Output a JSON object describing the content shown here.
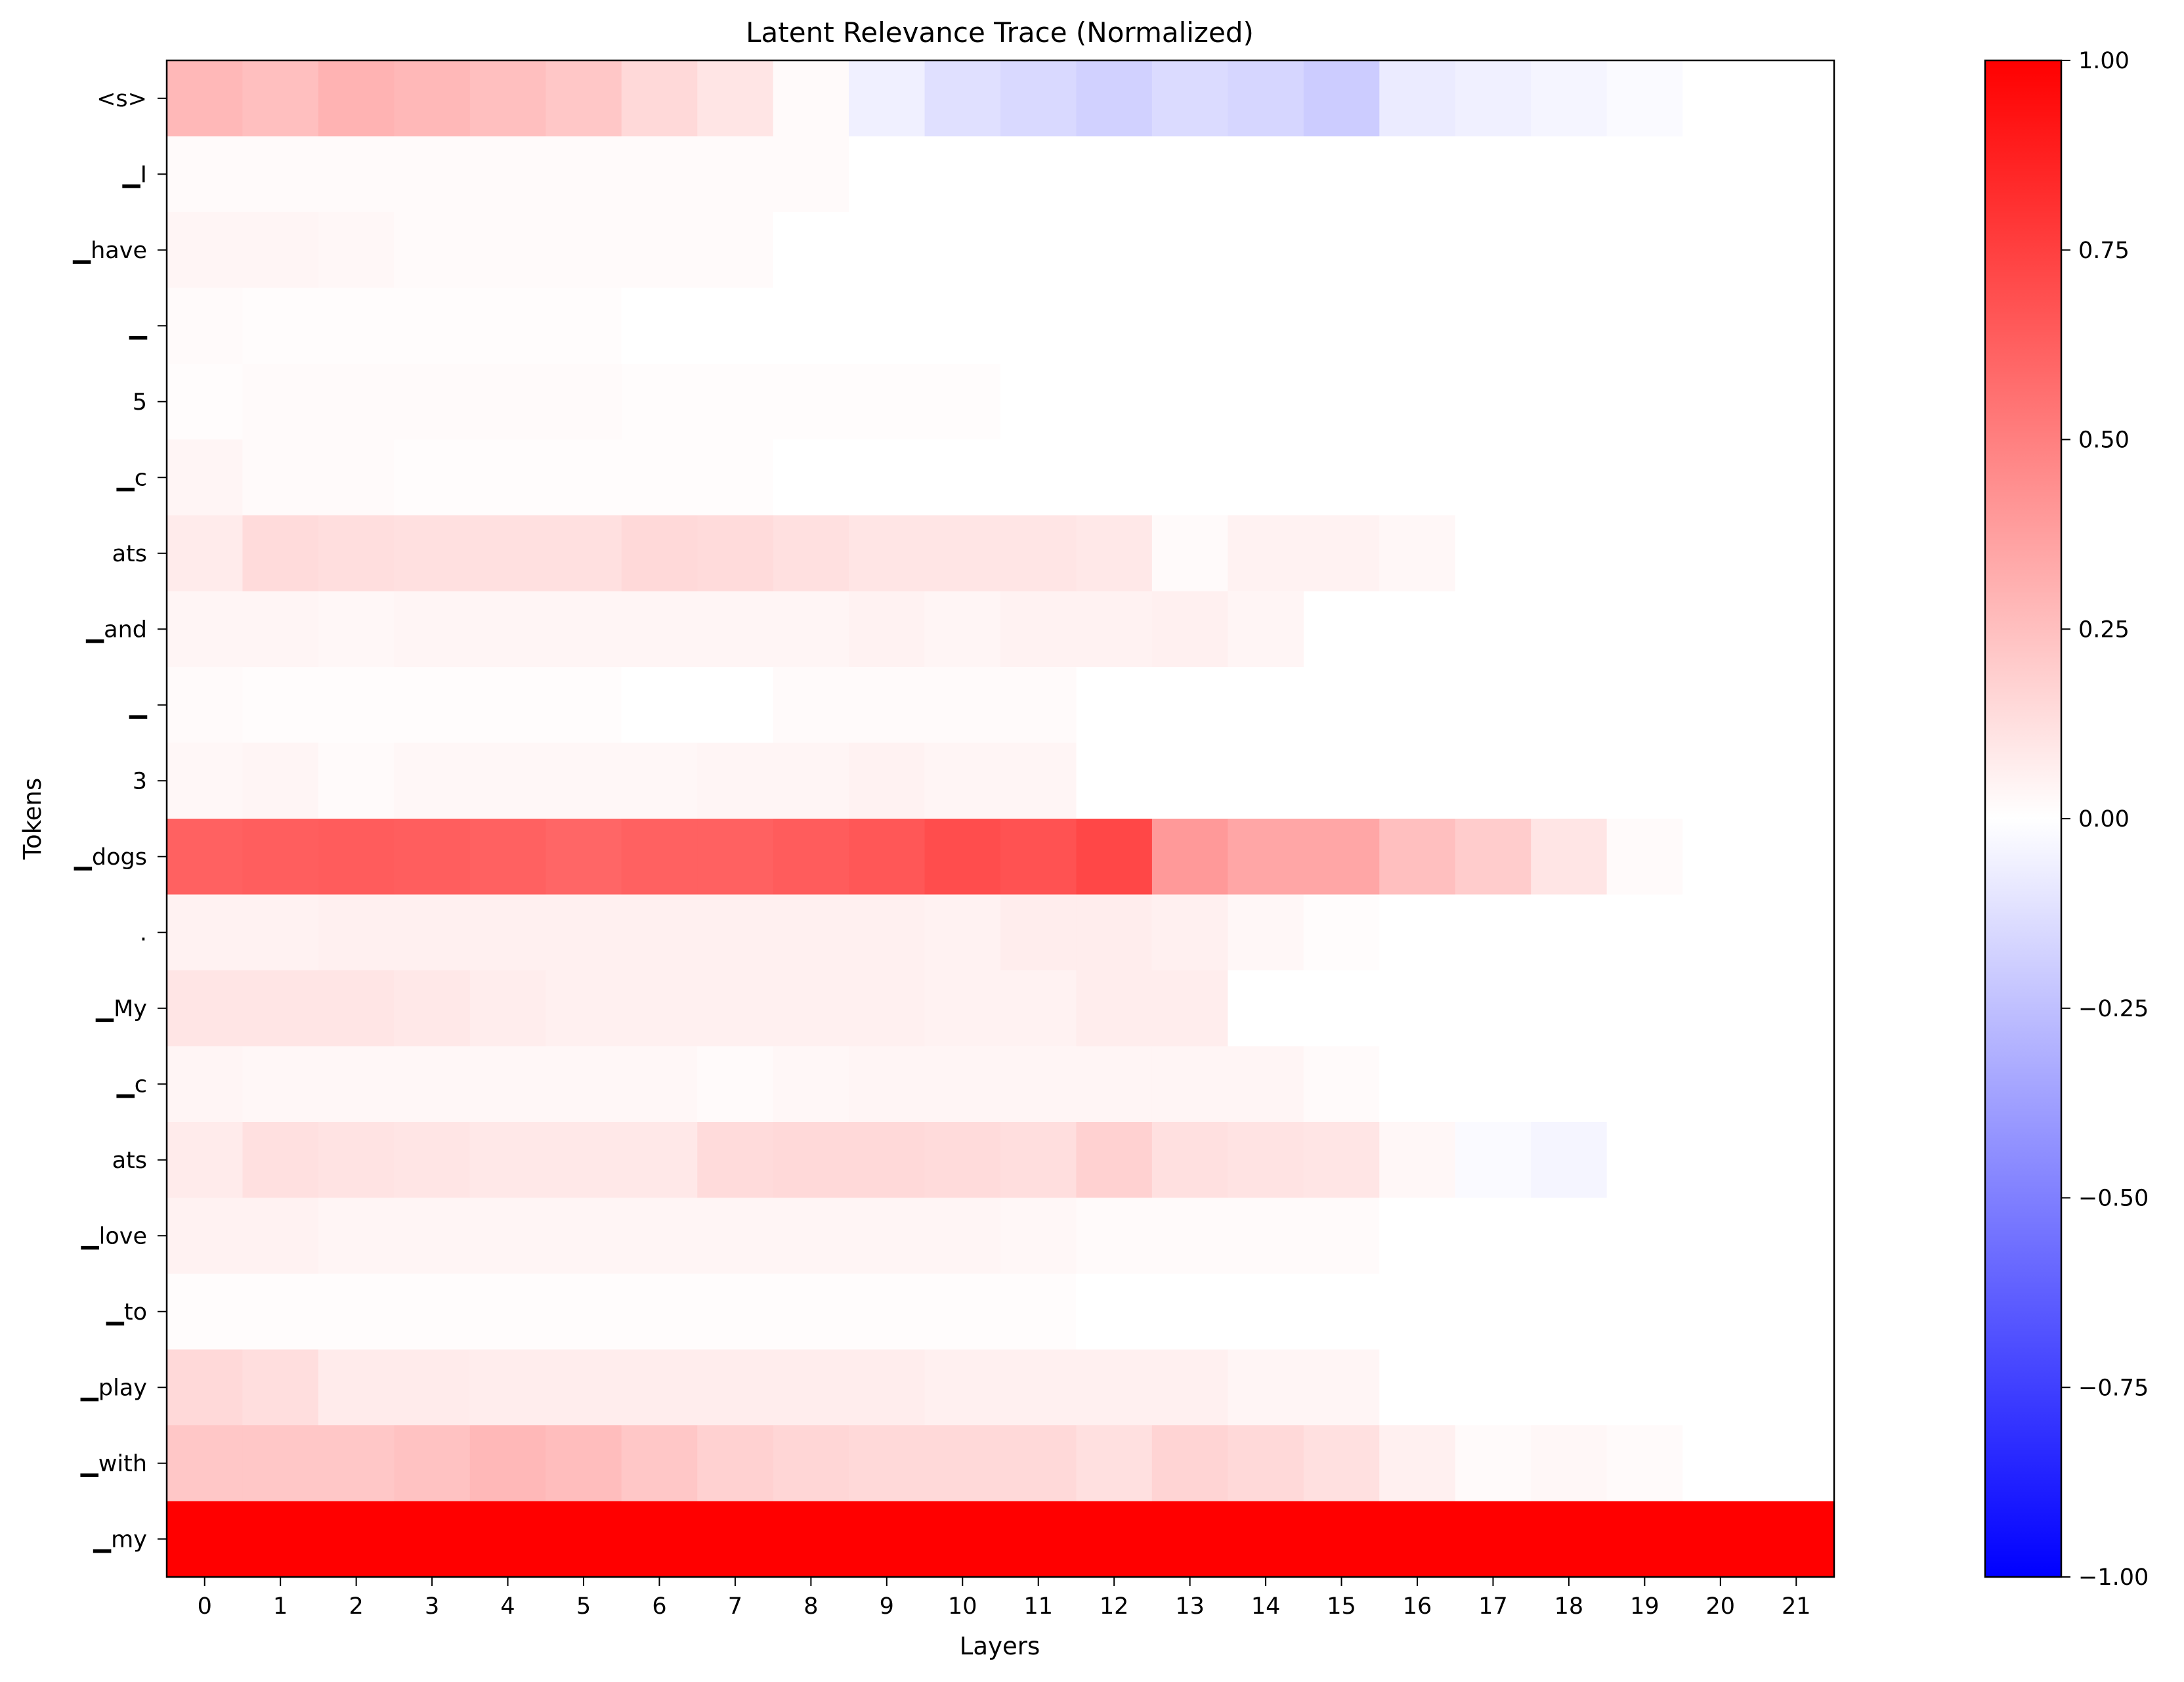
{
  "chart_data": {
    "type": "heatmap",
    "title": "Latent Relevance Trace (Normalized)",
    "xlabel": "Layers",
    "ylabel": "Tokens",
    "x": [
      0,
      1,
      2,
      3,
      4,
      5,
      6,
      7,
      8,
      9,
      10,
      11,
      12,
      13,
      14,
      15,
      16,
      17,
      18,
      19,
      20,
      21
    ],
    "y": [
      "<s>",
      "▁I",
      "▁have",
      "▁",
      "5",
      "▁c",
      "ats",
      "▁and",
      "▁",
      "3",
      "▁dogs",
      ".",
      "▁My",
      "▁c",
      "ats",
      "▁love",
      "▁to",
      "▁play",
      "▁with",
      "▁my"
    ],
    "values": [
      [
        0.28,
        0.25,
        0.3,
        0.28,
        0.25,
        0.22,
        0.15,
        0.1,
        0.02,
        -0.06,
        -0.12,
        -0.15,
        -0.18,
        -0.14,
        -0.16,
        -0.2,
        -0.08,
        -0.06,
        -0.04,
        -0.02,
        0.0,
        0.0
      ],
      [
        0.02,
        0.02,
        0.02,
        0.02,
        0.02,
        0.02,
        0.02,
        0.02,
        0.02,
        0.0,
        0.0,
        0.0,
        0.0,
        0.0,
        0.0,
        0.0,
        0.0,
        0.0,
        0.0,
        0.0,
        0.0,
        0.0
      ],
      [
        0.04,
        0.04,
        0.03,
        0.02,
        0.02,
        0.02,
        0.02,
        0.02,
        0.0,
        0.0,
        0.0,
        0.0,
        0.0,
        0.0,
        0.0,
        0.0,
        0.0,
        0.0,
        0.0,
        0.0,
        0.0,
        0.0
      ],
      [
        0.02,
        0.01,
        0.01,
        0.01,
        0.01,
        0.01,
        0.0,
        0.0,
        0.0,
        0.0,
        0.0,
        0.0,
        0.0,
        0.0,
        0.0,
        0.0,
        0.0,
        0.0,
        0.0,
        0.0,
        0.0,
        0.0
      ],
      [
        0.01,
        0.02,
        0.02,
        0.02,
        0.02,
        0.02,
        0.01,
        0.01,
        0.01,
        0.01,
        0.01,
        0.0,
        0.0,
        0.0,
        0.0,
        0.0,
        0.0,
        0.0,
        0.0,
        0.0,
        0.0,
        0.0
      ],
      [
        0.04,
        0.02,
        0.02,
        0.01,
        0.01,
        0.01,
        0.01,
        0.01,
        0.0,
        0.0,
        0.0,
        0.0,
        0.0,
        0.0,
        0.0,
        0.0,
        0.0,
        0.0,
        0.0,
        0.0,
        0.0,
        0.0
      ],
      [
        0.08,
        0.14,
        0.13,
        0.12,
        0.12,
        0.12,
        0.15,
        0.14,
        0.12,
        0.1,
        0.1,
        0.1,
        0.09,
        0.02,
        0.05,
        0.05,
        0.03,
        0.0,
        0.0,
        0.0,
        0.0,
        0.0
      ],
      [
        0.04,
        0.04,
        0.03,
        0.04,
        0.04,
        0.04,
        0.04,
        0.04,
        0.04,
        0.05,
        0.04,
        0.05,
        0.05,
        0.06,
        0.04,
        0.0,
        0.0,
        0.0,
        0.0,
        0.0,
        0.0,
        0.0
      ],
      [
        0.02,
        0.01,
        0.01,
        0.01,
        0.01,
        0.01,
        0.0,
        0.0,
        0.02,
        0.02,
        0.02,
        0.02,
        0.0,
        0.0,
        0.0,
        0.0,
        0.0,
        0.0,
        0.0,
        0.0,
        0.0,
        0.0
      ],
      [
        0.03,
        0.04,
        0.02,
        0.03,
        0.03,
        0.03,
        0.03,
        0.04,
        0.04,
        0.05,
        0.04,
        0.04,
        0.0,
        0.0,
        0.0,
        0.0,
        0.0,
        0.0,
        0.0,
        0.0,
        0.0,
        0.0
      ],
      [
        0.62,
        0.63,
        0.64,
        0.63,
        0.62,
        0.6,
        0.62,
        0.62,
        0.64,
        0.66,
        0.7,
        0.68,
        0.72,
        0.4,
        0.35,
        0.35,
        0.25,
        0.2,
        0.1,
        0.02,
        0.0,
        0.0
      ],
      [
        0.05,
        0.05,
        0.06,
        0.06,
        0.06,
        0.06,
        0.06,
        0.06,
        0.06,
        0.06,
        0.05,
        0.07,
        0.07,
        0.06,
        0.03,
        0.01,
        0.0,
        0.0,
        0.0,
        0.0,
        0.0,
        0.0
      ],
      [
        0.1,
        0.1,
        0.1,
        0.09,
        0.07,
        0.06,
        0.06,
        0.06,
        0.06,
        0.06,
        0.05,
        0.05,
        0.07,
        0.07,
        0.0,
        0.0,
        0.0,
        0.0,
        0.0,
        0.0,
        0.0,
        0.0
      ],
      [
        0.04,
        0.03,
        0.03,
        0.03,
        0.03,
        0.03,
        0.03,
        0.02,
        0.03,
        0.04,
        0.04,
        0.04,
        0.04,
        0.04,
        0.04,
        0.02,
        0.0,
        0.0,
        0.0,
        0.0,
        0.0,
        0.0
      ],
      [
        0.08,
        0.12,
        0.11,
        0.1,
        0.09,
        0.09,
        0.09,
        0.14,
        0.15,
        0.15,
        0.14,
        0.13,
        0.18,
        0.12,
        0.11,
        0.1,
        0.03,
        -0.02,
        -0.04,
        0.0,
        0.0,
        0.0
      ],
      [
        0.05,
        0.05,
        0.04,
        0.04,
        0.04,
        0.04,
        0.04,
        0.04,
        0.04,
        0.04,
        0.04,
        0.03,
        0.02,
        0.02,
        0.02,
        0.02,
        0.0,
        0.0,
        0.0,
        0.0,
        0.0,
        0.0
      ],
      [
        0.01,
        0.01,
        0.01,
        0.01,
        0.01,
        0.01,
        0.01,
        0.01,
        0.01,
        0.01,
        0.01,
        0.01,
        0.0,
        0.0,
        0.0,
        0.0,
        0.0,
        0.0,
        0.0,
        0.0,
        0.0,
        0.0
      ],
      [
        0.15,
        0.13,
        0.08,
        0.08,
        0.07,
        0.07,
        0.07,
        0.07,
        0.07,
        0.07,
        0.06,
        0.06,
        0.06,
        0.06,
        0.04,
        0.04,
        0.0,
        0.0,
        0.0,
        0.0,
        0.0,
        0.0
      ],
      [
        0.22,
        0.22,
        0.22,
        0.24,
        0.28,
        0.26,
        0.22,
        0.18,
        0.16,
        0.15,
        0.15,
        0.15,
        0.12,
        0.17,
        0.15,
        0.12,
        0.06,
        0.02,
        0.03,
        0.02,
        0.0,
        0.0
      ],
      [
        1.0,
        1.0,
        1.0,
        1.0,
        1.0,
        1.0,
        1.0,
        1.0,
        1.0,
        1.0,
        1.0,
        1.0,
        1.0,
        1.0,
        1.0,
        1.0,
        1.0,
        1.0,
        1.0,
        1.0,
        1.0,
        1.0
      ]
    ],
    "colormap": "bwr",
    "vmin": -1.0,
    "vmax": 1.0,
    "colorbar": {
      "ticks": [
        1.0,
        0.75,
        0.5,
        0.25,
        0.0,
        -0.25,
        -0.5,
        -0.75,
        -1.0
      ],
      "tick_labels": [
        "1.00",
        "0.75",
        "0.50",
        "0.25",
        "0.00",
        "−0.25",
        "−0.50",
        "−0.75",
        "−1.00"
      ],
      "placement": "right"
    },
    "grid": false
  }
}
